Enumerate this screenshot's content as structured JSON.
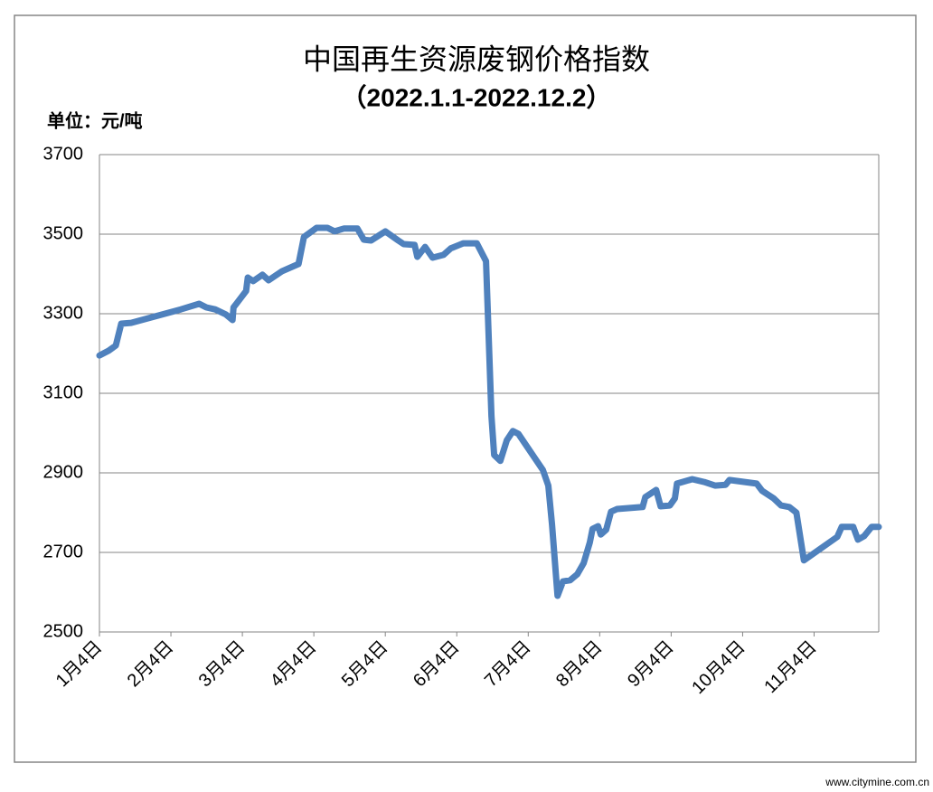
{
  "chart_data": {
    "type": "line",
    "title": "中国再生资源废钢价格指数",
    "subtitle": "（2022.1.1-2022.12.2）",
    "y_axis_label": "单位：元/吨",
    "watermark": "www.citymine.com.cn",
    "color": "#4f81bd",
    "grid": true,
    "x": [
      0,
      2.7,
      4.8,
      6.4,
      9.3,
      23.9,
      29.3,
      31.4,
      34,
      37.2,
      39.1,
      39.4,
      40.4,
      43.1,
      43.6,
      45.2,
      47.9,
      49.7,
      53.7,
      58.5,
      60.1,
      63.8,
      67,
      69.1,
      71.8,
      75.8,
      77.7,
      79.8,
      84,
      87.8,
      89.4,
      92.6,
      93.4,
      95.7,
      97.9,
      101.1,
      103.2,
      106.9,
      110.9,
      113.6,
      115.2,
      116,
      117.8,
      119.7,
      121.5,
      123.1,
      130.3,
      131.9,
      133,
      134.6,
      136.2,
      138.3,
      140.4,
      142.3,
      144.1,
      144.9,
      146.5,
      147.3,
      148.9,
      150.3,
      152.1,
      159.6,
      160.4,
      163.6,
      164.9,
      167.6,
      169.1,
      169.7,
      174.2,
      177.7,
      180.9,
      184,
      185.1,
      193.1,
      194.7,
      198.1,
      200.3,
      202.7,
      204.8,
      207,
      216.8,
      218.1,
      221.5,
      222.9,
      224.7,
      226.9,
      229
    ],
    "values": [
      3195,
      3207,
      3220,
      3275,
      3277,
      3311,
      3325,
      3316,
      3311,
      3298,
      3284,
      3316,
      3327,
      3357,
      3391,
      3382,
      3398,
      3384,
      3407,
      3425,
      3493,
      3516,
      3516,
      3507,
      3514,
      3514,
      3486,
      3484,
      3507,
      3484,
      3475,
      3473,
      3443,
      3468,
      3441,
      3448,
      3464,
      3477,
      3477,
      3432,
      3043,
      2945,
      2930,
      2982,
      3005,
      2998,
      2907,
      2868,
      2770,
      2591,
      2627,
      2630,
      2645,
      2673,
      2725,
      2759,
      2766,
      2745,
      2757,
      2802,
      2809,
      2814,
      2839,
      2857,
      2816,
      2818,
      2836,
      2873,
      2884,
      2877,
      2868,
      2870,
      2882,
      2873,
      2855,
      2836,
      2818,
      2814,
      2800,
      2680,
      2739,
      2764,
      2764,
      2732,
      2741,
      2764,
      2764
    ],
    "xlim": [
      0,
      229
    ],
    "xticks": [
      {
        "value": 0,
        "label": "1月4日"
      },
      {
        "value": 21,
        "label": "2月4日"
      },
      {
        "value": 42,
        "label": "3月4日"
      },
      {
        "value": 63,
        "label": "4月4日"
      },
      {
        "value": 84,
        "label": "5月4日"
      },
      {
        "value": 105,
        "label": "6月4日"
      },
      {
        "value": 126,
        "label": "7月4日"
      },
      {
        "value": 147,
        "label": "8月4日"
      },
      {
        "value": 168,
        "label": "9月4日"
      },
      {
        "value": 189,
        "label": "10月4日"
      },
      {
        "value": 210,
        "label": "11月4日"
      }
    ],
    "ylim": [
      2500,
      3700
    ],
    "yticks": [
      2500,
      2700,
      2900,
      3100,
      3300,
      3500,
      3700
    ]
  }
}
